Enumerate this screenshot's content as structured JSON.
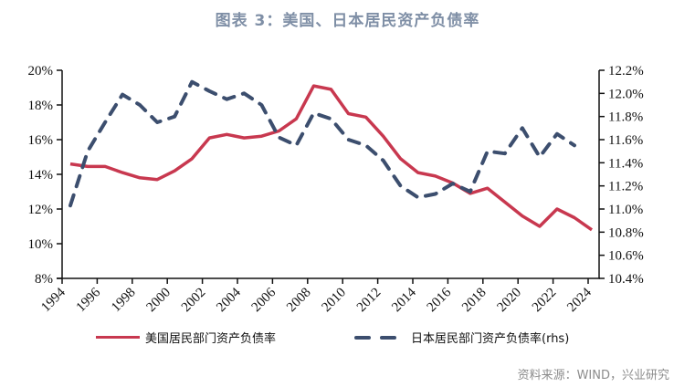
{
  "title": "图表 3：美国、日本居民资产负债率",
  "source": "资料来源：WIND，兴业研究",
  "colors": {
    "us": "#c8384f",
    "japan": "#3c4e6e",
    "title": "#7f8fa6"
  },
  "legend": {
    "us": "美国居民部门资产负债率",
    "japan": "日本居民部门资产负债率(rhs)"
  },
  "chart_data": {
    "type": "line",
    "title": "图表 3：美国、日本居民资产负债率",
    "x": [
      1994,
      1995,
      1996,
      1997,
      1998,
      1999,
      2000,
      2001,
      2002,
      2003,
      2004,
      2005,
      2006,
      2007,
      2008,
      2009,
      2010,
      2011,
      2012,
      2013,
      2014,
      2015,
      2016,
      2017,
      2018,
      2019,
      2020,
      2021,
      2022,
      2023,
      2024
    ],
    "series": [
      {
        "name": "美国居民部门资产负债率",
        "axis": "left",
        "style": "solid",
        "values": [
          14.6,
          14.45,
          14.45,
          14.1,
          13.8,
          13.7,
          14.2,
          14.9,
          16.1,
          16.3,
          16.1,
          16.2,
          16.5,
          17.2,
          19.1,
          18.9,
          17.5,
          17.3,
          16.2,
          14.9,
          14.1,
          13.9,
          13.5,
          12.9,
          13.2,
          12.4,
          11.6,
          11.0,
          12.0,
          11.5,
          10.8
        ]
      },
      {
        "name": "日本居民部门资产负债率(rhs)",
        "axis": "right",
        "style": "dashed",
        "values": [
          11.03,
          11.5,
          11.75,
          11.99,
          11.9,
          11.75,
          11.8,
          12.1,
          12.02,
          11.95,
          12.0,
          11.9,
          11.62,
          11.55,
          11.83,
          11.78,
          11.6,
          11.55,
          11.42,
          11.2,
          11.1,
          11.13,
          11.22,
          11.15,
          11.5,
          11.48,
          11.7,
          11.45,
          11.65,
          11.55,
          null
        ]
      }
    ],
    "xticks": [
      "1994",
      "1996",
      "1998",
      "2000",
      "2002",
      "2004",
      "2006",
      "2008",
      "2010",
      "2012",
      "2014",
      "2016",
      "2018",
      "2020",
      "2022",
      "2024"
    ],
    "yticks_left": [
      "8%",
      "10%",
      "12%",
      "14%",
      "16%",
      "18%",
      "20%"
    ],
    "yticks_right": [
      "10.4%",
      "10.6%",
      "10.8%",
      "11.0%",
      "11.2%",
      "11.4%",
      "11.6%",
      "11.8%",
      "12.0%",
      "12.2%"
    ],
    "ylim_left": [
      8,
      20
    ],
    "ylim_right": [
      10.4,
      12.2
    ],
    "xlabel": "",
    "ylabel": "",
    "grid": false,
    "legend_position": "bottom"
  }
}
